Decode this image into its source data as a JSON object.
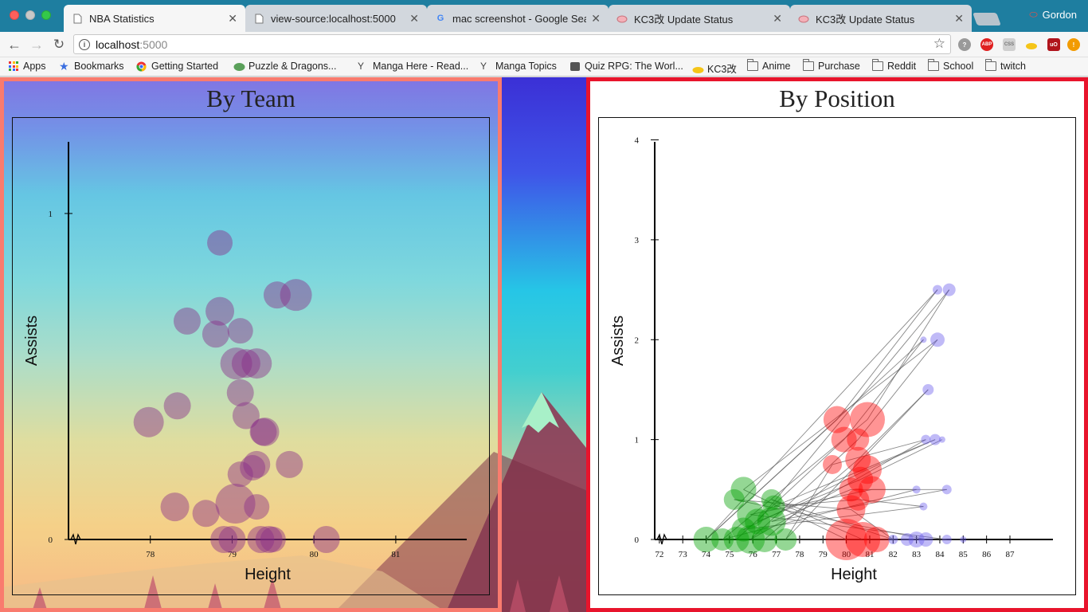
{
  "browser": {
    "tabs": [
      {
        "title": "NBA Statistics",
        "active": true,
        "icon": "page-icon"
      },
      {
        "title": "view-source:localhost:5000",
        "active": false,
        "icon": "page-icon"
      },
      {
        "title": "mac screenshot - Google Sear",
        "active": false,
        "icon": "google-icon"
      },
      {
        "title": "KC3改 Update Status",
        "active": false,
        "icon": "kc3-icon"
      },
      {
        "title": "KC3改 Update Status",
        "active": false,
        "icon": "kc3-icon"
      }
    ],
    "profile_name": "Gordon",
    "address": {
      "host": "localhost",
      "port": ":5000"
    },
    "extensions": [
      "help-icon",
      "adblock-icon",
      "css-icon",
      "kc3-icon",
      "ublock-icon",
      "warning-icon"
    ],
    "bookmarks": [
      {
        "label": "Apps",
        "icon": "apps-icon"
      },
      {
        "label": "Bookmarks",
        "icon": "star-icon"
      },
      {
        "label": "Getting Started",
        "icon": "chrome-icon"
      },
      {
        "label": "Puzzle & Dragons...",
        "icon": "pad-icon"
      },
      {
        "label": "Manga Here - Read...",
        "icon": "manga-icon"
      },
      {
        "label": "Manga Topics",
        "icon": "manga-icon"
      },
      {
        "label": "Quiz RPG: The Worl...",
        "icon": "quiz-icon"
      },
      {
        "label": "KC3改",
        "icon": "kc3-icon"
      },
      {
        "label": "Anime",
        "icon": "folder-icon"
      },
      {
        "label": "Purchase",
        "icon": "folder-icon"
      },
      {
        "label": "Reddit",
        "icon": "folder-icon"
      },
      {
        "label": "School",
        "icon": "folder-icon"
      },
      {
        "label": "twitch",
        "icon": "folder-icon"
      }
    ]
  },
  "page": {
    "left_panel": {
      "title": "By Team",
      "border_color": "#f97b6e"
    },
    "right_panel": {
      "title": "By Position",
      "border_color": "#e8142c"
    }
  },
  "chart_data": [
    {
      "type": "scatter",
      "title": "By Team",
      "xlabel": "Height",
      "ylabel": "Assists",
      "xlim": [
        77.0,
        81.4
      ],
      "ylim": [
        0,
        1.1
      ],
      "x_ticks": [
        "78",
        "79",
        "80",
        "81"
      ],
      "y_ticks": [
        "0",
        "1"
      ],
      "point_color": "#8a2f8a",
      "points": [
        {
          "x": 78.85,
          "y": 0.91,
          "r": 16
        },
        {
          "x": 79.55,
          "y": 0.75,
          "r": 17
        },
        {
          "x": 79.78,
          "y": 0.75,
          "r": 20
        },
        {
          "x": 78.45,
          "y": 0.67,
          "r": 17
        },
        {
          "x": 78.85,
          "y": 0.7,
          "r": 18
        },
        {
          "x": 78.8,
          "y": 0.63,
          "r": 17
        },
        {
          "x": 79.1,
          "y": 0.64,
          "r": 16
        },
        {
          "x": 79.05,
          "y": 0.54,
          "r": 20
        },
        {
          "x": 79.17,
          "y": 0.54,
          "r": 18
        },
        {
          "x": 79.3,
          "y": 0.54,
          "r": 19
        },
        {
          "x": 79.1,
          "y": 0.45,
          "r": 17
        },
        {
          "x": 78.33,
          "y": 0.41,
          "r": 17
        },
        {
          "x": 77.98,
          "y": 0.36,
          "r": 19
        },
        {
          "x": 79.17,
          "y": 0.38,
          "r": 17
        },
        {
          "x": 79.38,
          "y": 0.33,
          "r": 17
        },
        {
          "x": 79.4,
          "y": 0.33,
          "r": 18
        },
        {
          "x": 79.3,
          "y": 0.23,
          "r": 17
        },
        {
          "x": 79.7,
          "y": 0.23,
          "r": 17
        },
        {
          "x": 79.1,
          "y": 0.2,
          "r": 16
        },
        {
          "x": 79.25,
          "y": 0.22,
          "r": 16
        },
        {
          "x": 78.3,
          "y": 0.1,
          "r": 18
        },
        {
          "x": 78.68,
          "y": 0.08,
          "r": 17
        },
        {
          "x": 79.04,
          "y": 0.11,
          "r": 25
        },
        {
          "x": 79.3,
          "y": 0.1,
          "r": 16
        },
        {
          "x": 78.9,
          "y": 0.0,
          "r": 17
        },
        {
          "x": 79.0,
          "y": 0.0,
          "r": 17
        },
        {
          "x": 79.35,
          "y": 0.0,
          "r": 17
        },
        {
          "x": 79.45,
          "y": 0.0,
          "r": 17
        },
        {
          "x": 79.5,
          "y": 0.0,
          "r": 16
        },
        {
          "x": 80.15,
          "y": 0.0,
          "r": 17
        }
      ]
    },
    {
      "type": "scatter",
      "title": "By Position",
      "xlabel": "Height",
      "ylabel": "Assists",
      "xlim": [
        71.8,
        88.5
      ],
      "ylim": [
        0,
        4.1
      ],
      "x_ticks": [
        "72",
        "73",
        "74",
        "75",
        "76",
        "77",
        "78",
        "79",
        "80",
        "81",
        "82",
        "83",
        "84",
        "85",
        "86",
        "87"
      ],
      "y_ticks": [
        "0",
        "1",
        "2",
        "3",
        "4"
      ],
      "series": [
        {
          "name": "",
          "color": "#00a000",
          "points": [
            {
              "x": 74.0,
              "y": 0.0,
              "r": 16
            },
            {
              "x": 74.7,
              "y": 0.0,
              "r": 14
            },
            {
              "x": 75.3,
              "y": 0.0,
              "r": 16
            },
            {
              "x": 75.9,
              "y": 0.0,
              "r": 18
            },
            {
              "x": 76.5,
              "y": 0.0,
              "r": 16
            },
            {
              "x": 77.4,
              "y": 0.0,
              "r": 14
            },
            {
              "x": 75.6,
              "y": 0.1,
              "r": 15
            },
            {
              "x": 76.2,
              "y": 0.18,
              "r": 16
            },
            {
              "x": 76.8,
              "y": 0.18,
              "r": 18
            },
            {
              "x": 75.9,
              "y": 0.25,
              "r": 17
            },
            {
              "x": 76.9,
              "y": 0.33,
              "r": 14
            },
            {
              "x": 75.2,
              "y": 0.4,
              "r": 13
            },
            {
              "x": 75.6,
              "y": 0.5,
              "r": 16
            },
            {
              "x": 76.8,
              "y": 0.4,
              "r": 13
            }
          ]
        },
        {
          "name": "",
          "color": "#ff0000",
          "points": [
            {
              "x": 79.6,
              "y": 1.2,
              "r": 17
            },
            {
              "x": 80.9,
              "y": 1.2,
              "r": 22
            },
            {
              "x": 79.9,
              "y": 1.0,
              "r": 16
            },
            {
              "x": 80.5,
              "y": 1.0,
              "r": 14
            },
            {
              "x": 80.5,
              "y": 0.8,
              "r": 16
            },
            {
              "x": 79.4,
              "y": 0.75,
              "r": 12
            },
            {
              "x": 80.9,
              "y": 0.7,
              "r": 18
            },
            {
              "x": 80.6,
              "y": 0.6,
              "r": 16
            },
            {
              "x": 80.2,
              "y": 0.5,
              "r": 15
            },
            {
              "x": 81.1,
              "y": 0.5,
              "r": 17
            },
            {
              "x": 80.5,
              "y": 0.4,
              "r": 14
            },
            {
              "x": 80.2,
              "y": 0.3,
              "r": 18
            },
            {
              "x": 80.0,
              "y": 0.0,
              "r": 26
            },
            {
              "x": 80.7,
              "y": 0.0,
              "r": 22
            },
            {
              "x": 81.3,
              "y": 0.0,
              "r": 16
            }
          ]
        },
        {
          "name": "",
          "color": "#6a5aed",
          "points": [
            {
              "x": 83.9,
              "y": 2.5,
              "r": 6
            },
            {
              "x": 84.4,
              "y": 2.5,
              "r": 8
            },
            {
              "x": 83.3,
              "y": 2.0,
              "r": 4
            },
            {
              "x": 83.9,
              "y": 2.0,
              "r": 9
            },
            {
              "x": 83.5,
              "y": 1.5,
              "r": 7
            },
            {
              "x": 83.4,
              "y": 1.0,
              "r": 6
            },
            {
              "x": 83.8,
              "y": 1.0,
              "r": 7
            },
            {
              "x": 84.1,
              "y": 1.0,
              "r": 4
            },
            {
              "x": 83.0,
              "y": 0.5,
              "r": 5
            },
            {
              "x": 84.3,
              "y": 0.5,
              "r": 6
            },
            {
              "x": 83.3,
              "y": 0.33,
              "r": 5
            },
            {
              "x": 82.0,
              "y": 0.0,
              "r": 6
            },
            {
              "x": 82.6,
              "y": 0.0,
              "r": 8
            },
            {
              "x": 83.0,
              "y": 0.0,
              "r": 10
            },
            {
              "x": 83.4,
              "y": 0.0,
              "r": 9
            },
            {
              "x": 84.3,
              "y": 0.0,
              "r": 6
            },
            {
              "x": 85.0,
              "y": 0.0,
              "r": 4
            }
          ]
        }
      ]
    }
  ]
}
